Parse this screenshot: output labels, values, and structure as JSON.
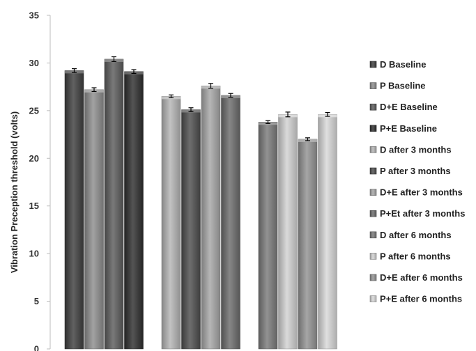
{
  "chart_data": {
    "type": "bar",
    "ylabel": "Vibration Preception threshold (volts)",
    "ylim": [
      0,
      35
    ],
    "yticks": [
      0,
      5,
      10,
      15,
      20,
      25,
      30,
      35
    ],
    "grid": false,
    "legend_position": "right",
    "groups": [
      {
        "series": [
          "D Baseline",
          "P Baseline",
          "D+E Baseline",
          "P+E Baseline"
        ],
        "values": [
          29.2,
          27.2,
          30.4,
          29.1
        ],
        "errors": [
          0.2,
          0.2,
          0.25,
          0.2
        ]
      },
      {
        "series": [
          "D after 3 months",
          "P after 3 months",
          "D+E after 3 months",
          "P+Et after 3 months"
        ],
        "values": [
          26.5,
          25.1,
          27.6,
          26.6
        ],
        "errors": [
          0.15,
          0.2,
          0.25,
          0.2
        ]
      },
      {
        "series": [
          "D after 6 months",
          "P after 6 months",
          "D+E after 6 months",
          "P+E after 6 months"
        ],
        "values": [
          23.8,
          24.6,
          22.0,
          24.6
        ],
        "errors": [
          0.15,
          0.25,
          0.15,
          0.2
        ]
      }
    ],
    "legend": [
      {
        "label": "D Baseline",
        "color": "#3e3e3e"
      },
      {
        "label": "P Baseline",
        "color": "#8e8e8e"
      },
      {
        "label": "D+E Baseline",
        "color": "#5c5c5c"
      },
      {
        "label": "P+E Baseline",
        "color": "#2e2e2e"
      },
      {
        "label": "D after 3 months",
        "color": "#b4b4b4"
      },
      {
        "label": "P after 3 months",
        "color": "#4e4e4e"
      },
      {
        "label": "D+E after 3 months",
        "color": "#a6a6a6"
      },
      {
        "label": "P+Et after 3 months",
        "color": "#6c6c6c"
      },
      {
        "label": "D after 6 months",
        "color": "#7a7a7a"
      },
      {
        "label": "P after 6 months",
        "color": "#d2d2d2"
      },
      {
        "label": "D+E after 6 months",
        "color": "#939393"
      },
      {
        "label": "P+E after 6 months",
        "color": "#d8d8d8"
      }
    ]
  }
}
